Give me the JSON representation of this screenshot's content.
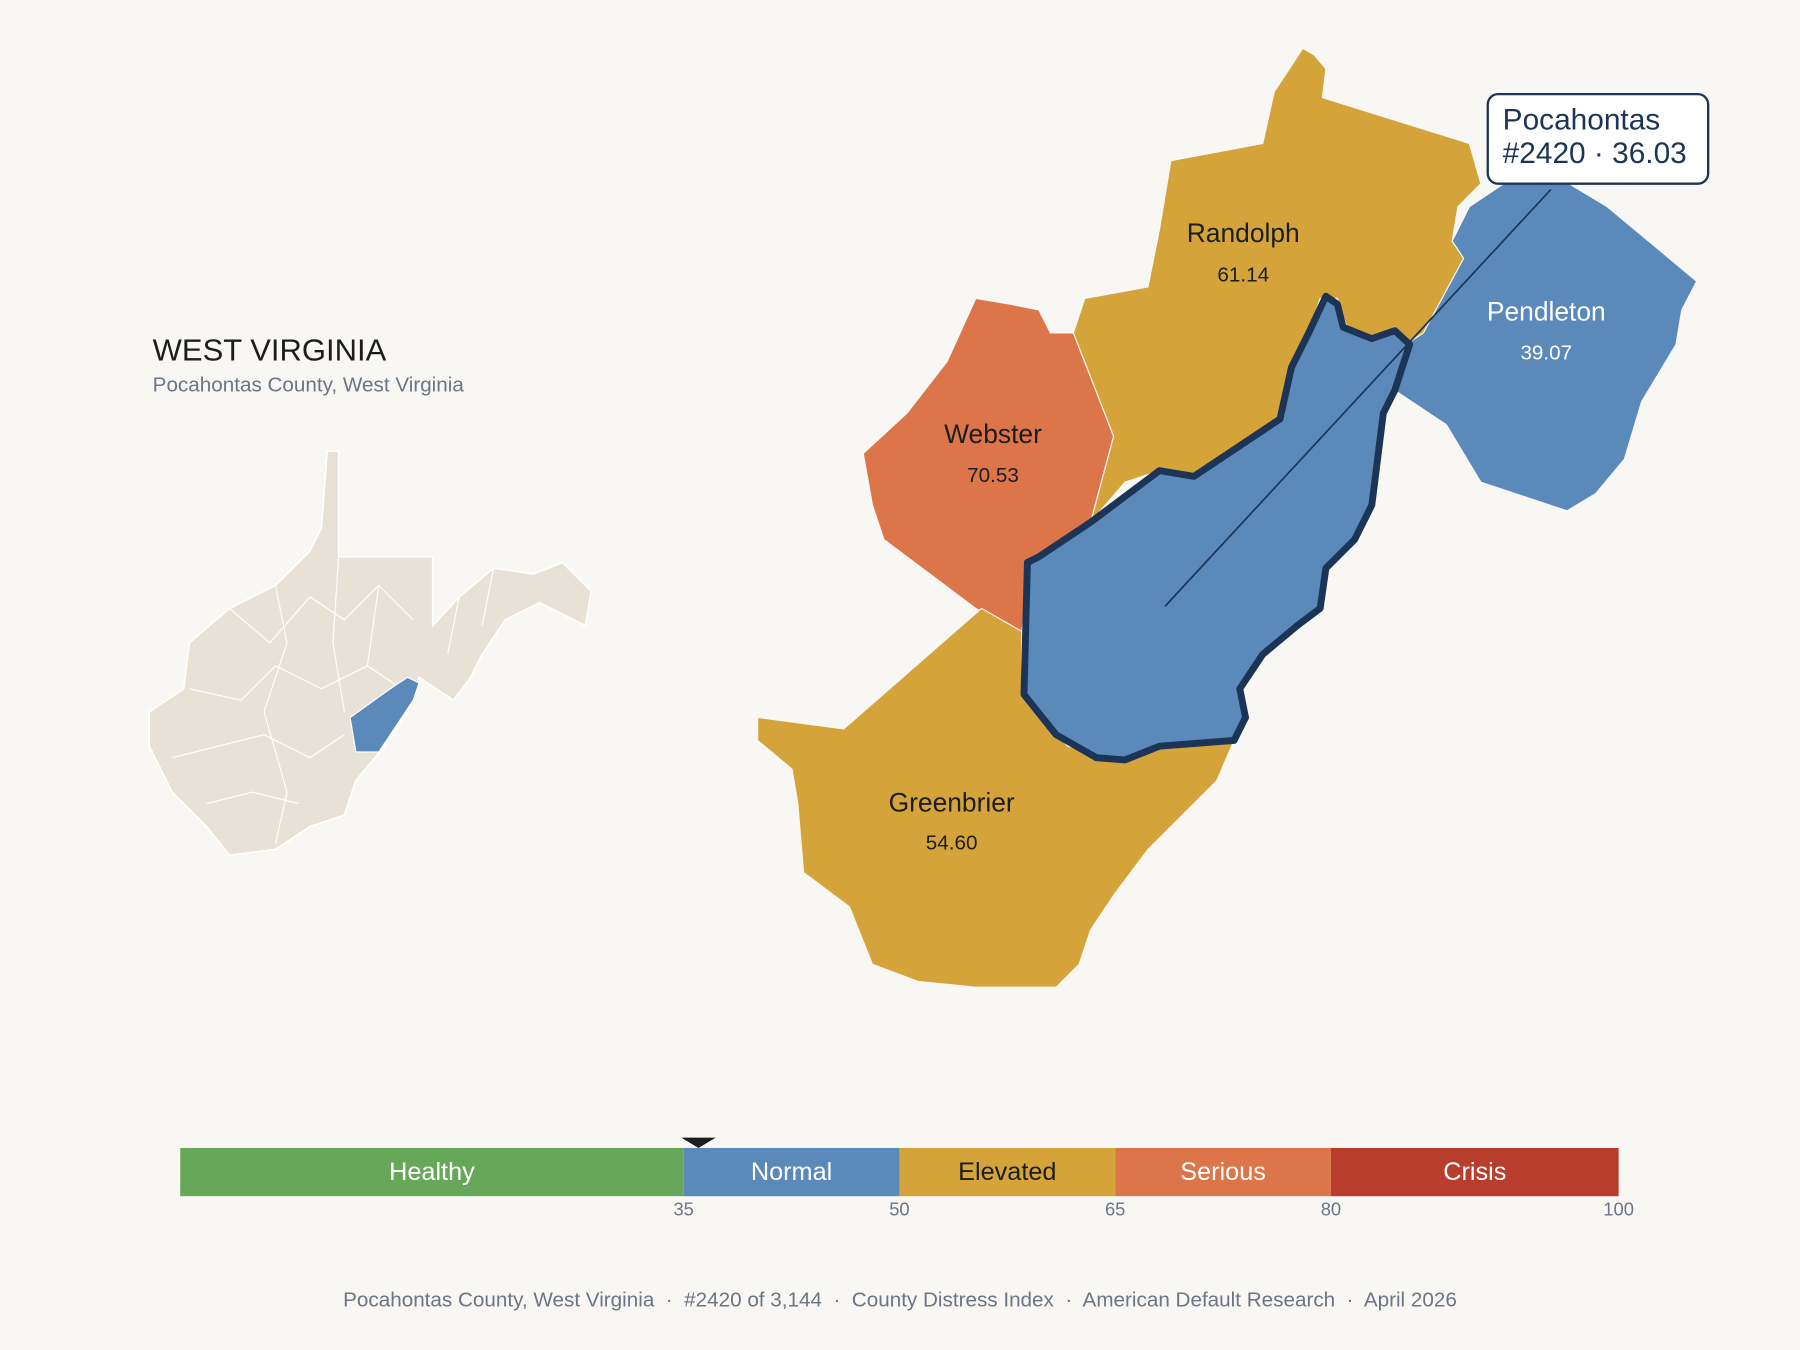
{
  "header": {
    "title": "WEST VIRGINIA",
    "subtitle": "Pocahontas County, West Virginia"
  },
  "counties": [
    {
      "name": "Randolph",
      "value": "61.14",
      "color": "#d4a43b",
      "text_color": "#1d1d1d"
    },
    {
      "name": "Webster",
      "value": "70.53",
      "color": "#dc7549",
      "text_color": "#1d1d1d"
    },
    {
      "name": "Pendleton",
      "value": "39.07",
      "color": "#5b8aba",
      "text_color": "#ffffff"
    },
    {
      "name": "Greenbrier",
      "value": "54.60",
      "color": "#d4a43b",
      "text_color": "#1d1d1d"
    }
  ],
  "callout": {
    "name": "Pocahontas",
    "line2": "#2420 · 36.03",
    "color": "#5b8aba"
  },
  "scale": {
    "bands": [
      {
        "name": "Healthy",
        "color": "#67a75a",
        "text_color": "#ffffff"
      },
      {
        "name": "Normal",
        "color": "#5b8aba",
        "text_color": "#ffffff"
      },
      {
        "name": "Elevated",
        "color": "#d4a43b",
        "text_color": "#1d1d1d"
      },
      {
        "name": "Serious",
        "color": "#dc7549",
        "text_color": "#ffffff"
      },
      {
        "name": "Crisis",
        "color": "#b93d2c",
        "text_color": "#ffffff"
      }
    ],
    "ticks": [
      35,
      50,
      65,
      80,
      100
    ],
    "marker": 36.03
  },
  "footer": "Pocahontas County, West Virginia  ·  #2420 of 3,144  ·  County Distress Index  ·  American Default Research  ·  April 2026"
}
